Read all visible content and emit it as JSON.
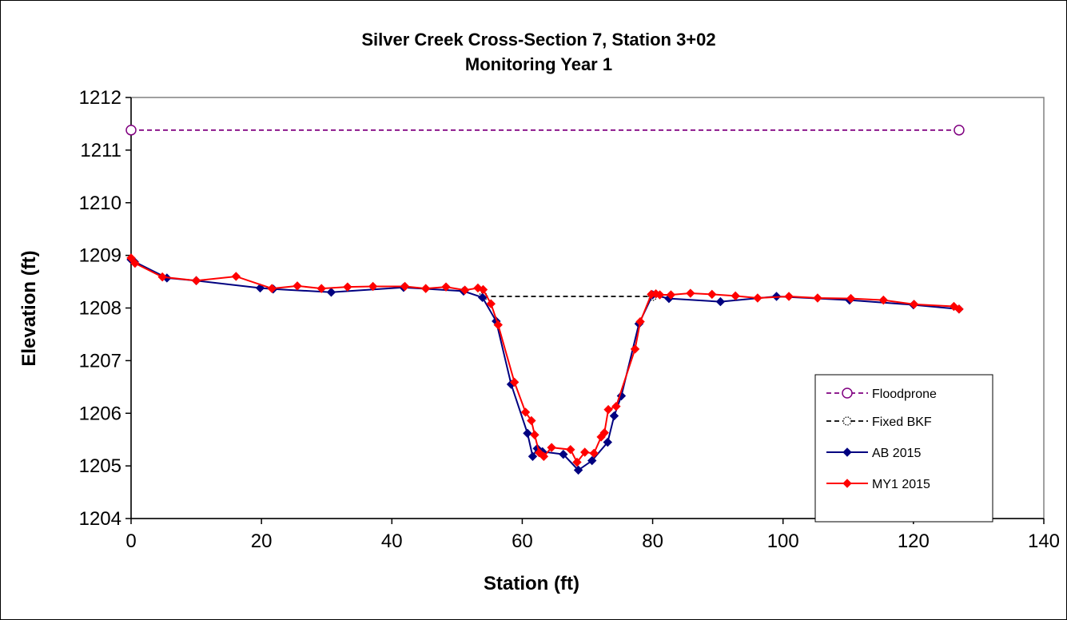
{
  "chart_data": {
    "type": "line",
    "title": "Silver Creek Cross-Section 7, Station 3+02",
    "subtitle": "Monitoring Year 1",
    "xlabel": "Station (ft)",
    "ylabel": "Elevation (ft)",
    "xlim": [
      0,
      140
    ],
    "ylim": [
      1204,
      1212
    ],
    "xticks": [
      0,
      20,
      40,
      60,
      80,
      100,
      120,
      140
    ],
    "yticks": [
      1204,
      1205,
      1206,
      1207,
      1208,
      1209,
      1210,
      1211,
      1212
    ],
    "grid": false,
    "legend_position": "bottom-right",
    "series": [
      {
        "name": "Floodprone",
        "color": "#800080",
        "line_style": "dashed",
        "marker": "open-circle",
        "x": [
          0,
          127
        ],
        "y": [
          1211.38,
          1211.38
        ]
      },
      {
        "name": "Fixed BKF",
        "color": "#000000",
        "line_style": "dashed",
        "marker": "dotted-circle",
        "x": [
          54,
          80
        ],
        "y": [
          1208.22,
          1208.22
        ]
      },
      {
        "name": "AB 2015",
        "color": "#000080",
        "line_style": "solid",
        "marker": "diamond",
        "x": [
          0,
          0.5,
          5.5,
          10,
          19.8,
          21.8,
          30.7,
          41.8,
          51,
          53.9,
          56,
          58.3,
          60.8,
          61.6,
          62.3,
          63.1,
          66.3,
          68.6,
          70.7,
          73.1,
          74.1,
          75.2,
          77.9,
          80,
          82.5,
          90.4,
          99,
          110.2,
          120,
          127
        ],
        "y": [
          1208.92,
          1208.88,
          1208.57,
          1208.52,
          1208.38,
          1208.36,
          1208.3,
          1208.39,
          1208.32,
          1208.2,
          1207.75,
          1206.55,
          1205.62,
          1205.18,
          1205.33,
          1205.27,
          1205.22,
          1204.92,
          1205.1,
          1205.45,
          1205.95,
          1206.33,
          1207.7,
          1208.25,
          1208.18,
          1208.12,
          1208.22,
          1208.15,
          1208.06,
          1207.98
        ]
      },
      {
        "name": "MY1 2015",
        "color": "#ff0000",
        "line_style": "solid",
        "marker": "diamond",
        "x": [
          0,
          0.6,
          4.8,
          10,
          16.1,
          21.6,
          25.5,
          29.2,
          33.2,
          37.1,
          42,
          45.2,
          48.3,
          51.2,
          53.2,
          54,
          55.2,
          56.3,
          58.8,
          60.5,
          61.4,
          61.9,
          62.6,
          63.3,
          64.5,
          67.4,
          68.4,
          69.6,
          71,
          72.1,
          72.6,
          73.2,
          74.4,
          77.3,
          78.1,
          79.8,
          80.5,
          81.1,
          82.8,
          85.8,
          89.1,
          92.7,
          96.1,
          100.9,
          105.3,
          110.4,
          115.4,
          120.1,
          126.2,
          127
        ],
        "y": [
          1208.95,
          1208.85,
          1208.59,
          1208.52,
          1208.6,
          1208.37,
          1208.42,
          1208.37,
          1208.4,
          1208.41,
          1208.41,
          1208.37,
          1208.4,
          1208.34,
          1208.38,
          1208.35,
          1208.08,
          1207.68,
          1206.59,
          1206.02,
          1205.86,
          1205.59,
          1205.25,
          1205.18,
          1205.35,
          1205.31,
          1205.07,
          1205.26,
          1205.24,
          1205.55,
          1205.63,
          1206.07,
          1206.13,
          1207.22,
          1207.74,
          1208.26,
          1208.27,
          1208.25,
          1208.25,
          1208.28,
          1208.26,
          1208.23,
          1208.19,
          1208.22,
          1208.19,
          1208.18,
          1208.15,
          1208.07,
          1208.03,
          1207.98
        ]
      }
    ]
  }
}
